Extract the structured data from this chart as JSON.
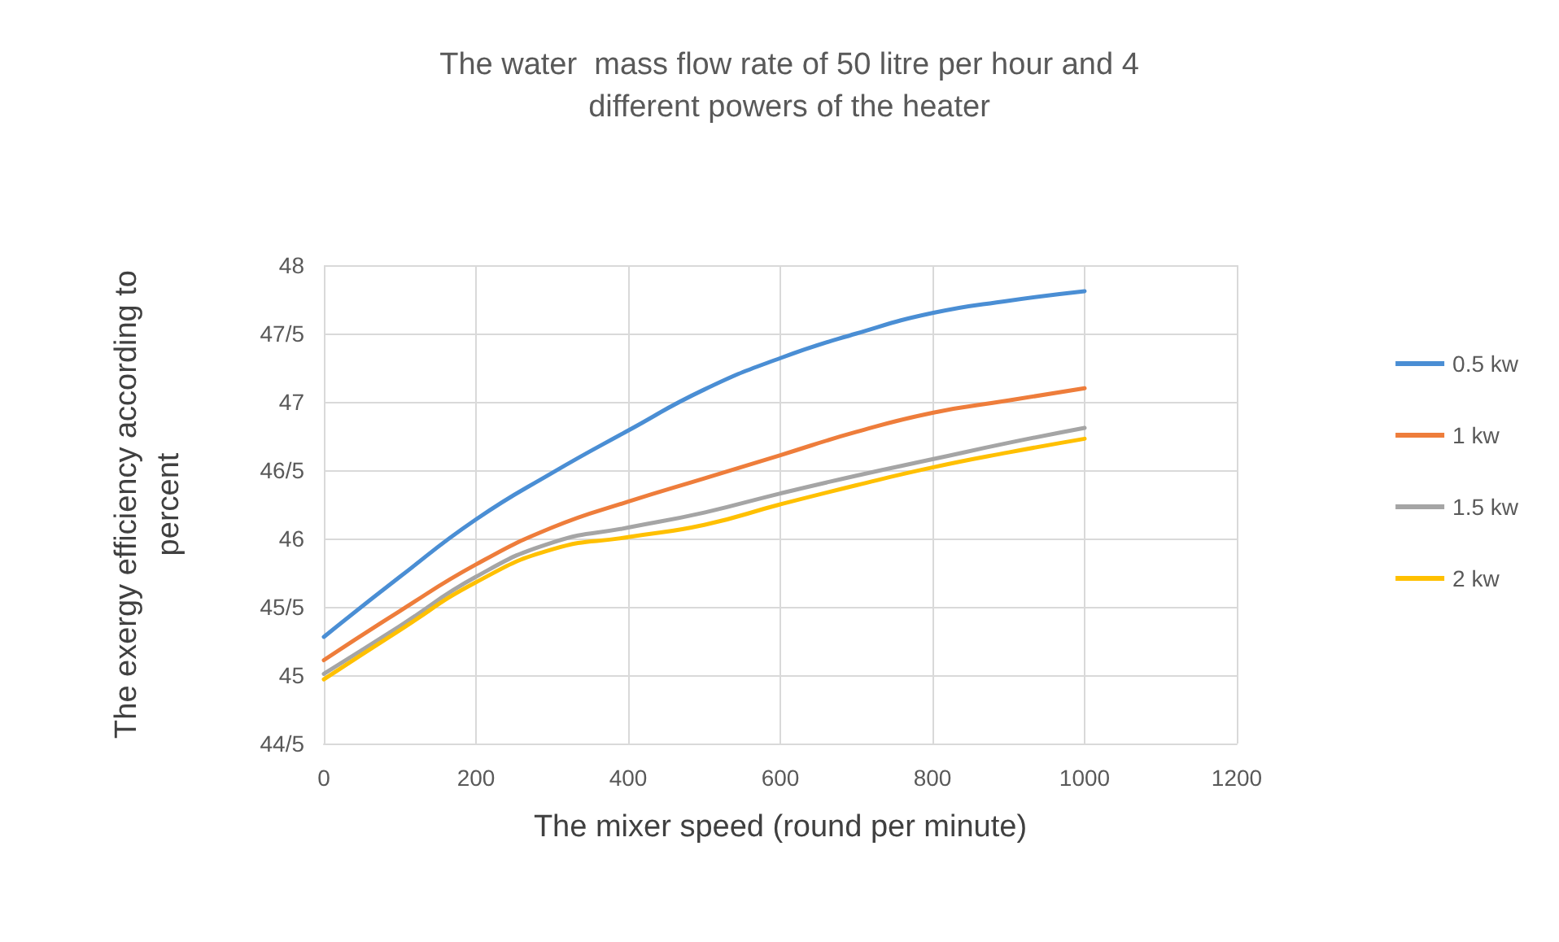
{
  "chart_data": {
    "type": "line",
    "title": "The water  mass flow rate of 50 litre per hour and 4\ndifferent powers of the heater",
    "xlabel": "The mixer speed (round per minute)",
    "ylabel": "The exergy efficiency according to\npercent",
    "x": [
      0,
      100,
      200,
      300,
      400,
      500,
      600,
      700,
      800,
      900,
      1000
    ],
    "series": [
      {
        "name": "0.5 kw",
        "color": "#4a8ed4",
        "values": [
          45.28,
          45.72,
          46.14,
          46.48,
          46.79,
          47.09,
          47.32,
          47.5,
          47.65,
          47.74,
          47.81
        ]
      },
      {
        "name": "1 kw",
        "color": "#ee7d3b",
        "values": [
          45.11,
          45.47,
          45.81,
          46.08,
          46.27,
          46.44,
          46.61,
          46.78,
          46.92,
          47.01,
          47.1
        ]
      },
      {
        "name": "1.5 kw",
        "color": "#a5a5a5",
        "values": [
          45.01,
          45.36,
          45.72,
          45.97,
          46.08,
          46.19,
          46.33,
          46.46,
          46.58,
          46.7,
          46.81
        ]
      },
      {
        "name": "2 kw",
        "color": "#ffc000",
        "values": [
          44.97,
          45.33,
          45.68,
          45.92,
          46.01,
          46.1,
          46.25,
          46.39,
          46.52,
          46.63,
          46.73
        ]
      }
    ],
    "xlim": [
      0,
      1200
    ],
    "xticks": [
      0,
      200,
      400,
      600,
      800,
      1000,
      1200
    ],
    "ylim": [
      44.5,
      48
    ],
    "yticks": [
      {
        "value": 44.5,
        "label": "44/5"
      },
      45,
      {
        "value": 45.5,
        "label": "45/5"
      },
      46,
      {
        "value": 46.5,
        "label": "46/5"
      },
      47,
      {
        "value": 47.5,
        "label": "47/5"
      },
      48
    ],
    "grid": true,
    "legend": "right",
    "marker": "none",
    "line_style": "solid"
  }
}
